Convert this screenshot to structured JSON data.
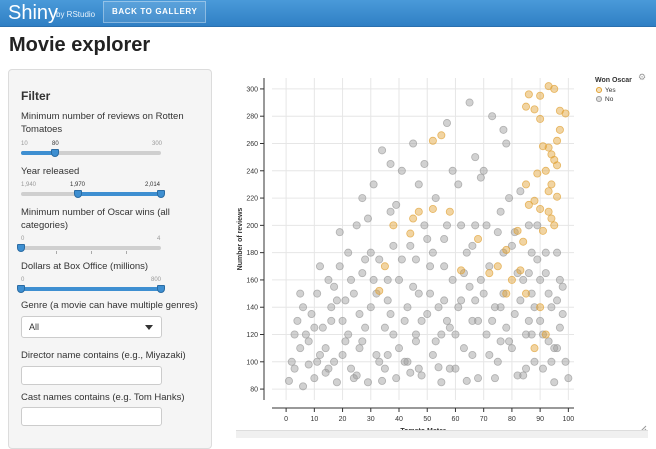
{
  "topbar": {
    "brand": "Shiny",
    "brand_sub": "by RStudio",
    "back_label": "BACK TO GALLERY"
  },
  "page_title": "Movie explorer",
  "filters": {
    "heading": "Filter",
    "reviews": {
      "label": "Minimum number of reviews on Rotten Tomatoes",
      "min": "10",
      "value": "80",
      "max": "300"
    },
    "year": {
      "label": "Year released",
      "min": "1,940",
      "low": "1,970",
      "high": "2,014"
    },
    "oscars": {
      "label": "Minimum number of Oscar wins (all categories)",
      "min": "0",
      "max": "4"
    },
    "boxoffice": {
      "label": "Dollars at Box Office (millions)",
      "min": "0",
      "max": "800"
    },
    "genre": {
      "label": "Genre (a movie can have multiple genres)",
      "value": "All"
    },
    "director": {
      "label": "Director name contains (e.g., Miyazaki)",
      "value": ""
    },
    "cast": {
      "label": "Cast names contains (e.g. Tom Hanks)",
      "value": ""
    }
  },
  "chart_data": {
    "type": "scatter",
    "xlabel": "Tomato Meter",
    "ylabel": "Number of reviews",
    "xlim": [
      -5,
      102
    ],
    "ylim": [
      72,
      308
    ],
    "x_ticks": [
      0,
      10,
      20,
      30,
      40,
      50,
      60,
      70,
      80,
      90,
      100
    ],
    "y_ticks": [
      80,
      100,
      120,
      140,
      160,
      180,
      200,
      220,
      240,
      260,
      280,
      300
    ],
    "grid": true,
    "legend": {
      "title": "Won Oscar",
      "placement": "top-right",
      "entries": [
        "Yes",
        "No"
      ]
    },
    "colors": {
      "Yes": "#e0a030",
      "No": "#999999"
    },
    "series": [
      {
        "name": "Yes",
        "points": [
          [
            52,
            262
          ],
          [
            55,
            266
          ],
          [
            85,
            287
          ],
          [
            88,
            285
          ],
          [
            90,
            278
          ],
          [
            91,
            258
          ],
          [
            93,
            257
          ],
          [
            94,
            252
          ],
          [
            95,
            248
          ],
          [
            96,
            244
          ],
          [
            92,
            240
          ],
          [
            89,
            238
          ],
          [
            85,
            230
          ],
          [
            86,
            215
          ],
          [
            88,
            218
          ],
          [
            90,
            212
          ],
          [
            93,
            210
          ],
          [
            94,
            205
          ],
          [
            95,
            200
          ],
          [
            91,
            196
          ],
          [
            82,
            196
          ],
          [
            84,
            188
          ],
          [
            78,
            182
          ],
          [
            75,
            170
          ],
          [
            72,
            165
          ],
          [
            68,
            190
          ],
          [
            58,
            210
          ],
          [
            52,
            212
          ],
          [
            47,
            210
          ],
          [
            45,
            205
          ],
          [
            44,
            194
          ],
          [
            38,
            200
          ],
          [
            35,
            170
          ],
          [
            33,
            152
          ],
          [
            62,
            167
          ],
          [
            80,
            160
          ],
          [
            85,
            150
          ],
          [
            90,
            140
          ],
          [
            92,
            120
          ],
          [
            88,
            110
          ],
          [
            97,
            284
          ],
          [
            99,
            282
          ],
          [
            97,
            270
          ],
          [
            96,
            262
          ],
          [
            94,
            230
          ],
          [
            93,
            225
          ],
          [
            96,
            221
          ],
          [
            83,
            167
          ],
          [
            78,
            150
          ],
          [
            90,
            295
          ],
          [
            93,
            302
          ],
          [
            95,
            300
          ],
          [
            86,
            296
          ]
        ]
      },
      {
        "name": "No",
        "points": [
          [
            1,
            86
          ],
          [
            3,
            95
          ],
          [
            5,
            110
          ],
          [
            6,
            82
          ],
          [
            7,
            120
          ],
          [
            8,
            98
          ],
          [
            9,
            135
          ],
          [
            10,
            88
          ],
          [
            11,
            150
          ],
          [
            12,
            105
          ],
          [
            13,
            125
          ],
          [
            14,
            92
          ],
          [
            15,
            160
          ],
          [
            16,
            140
          ],
          [
            17,
            100
          ],
          [
            18,
            85
          ],
          [
            19,
            170
          ],
          [
            20,
            130
          ],
          [
            21,
            115
          ],
          [
            22,
            180
          ],
          [
            23,
            95
          ],
          [
            24,
            150
          ],
          [
            25,
            200
          ],
          [
            26,
            110
          ],
          [
            27,
            165
          ],
          [
            28,
            125
          ],
          [
            29,
            85
          ],
          [
            30,
            140
          ],
          [
            31,
            230
          ],
          [
            32,
            105
          ],
          [
            33,
            175
          ],
          [
            34,
            255
          ],
          [
            35,
            95
          ],
          [
            36,
            145
          ],
          [
            37,
            210
          ],
          [
            38,
            120
          ],
          [
            39,
            88
          ],
          [
            40,
            160
          ],
          [
            41,
            240
          ],
          [
            42,
            130
          ],
          [
            43,
            100
          ],
          [
            44,
            185
          ],
          [
            45,
            260
          ],
          [
            46,
            115
          ],
          [
            47,
            150
          ],
          [
            48,
            90
          ],
          [
            49,
            200
          ],
          [
            50,
            135
          ],
          [
            51,
            170
          ],
          [
            52,
            105
          ],
          [
            53,
            220
          ],
          [
            54,
            140
          ],
          [
            55,
            85
          ],
          [
            56,
            190
          ],
          [
            57,
            275
          ],
          [
            58,
            125
          ],
          [
            59,
            160
          ],
          [
            60,
            95
          ],
          [
            61,
            230
          ],
          [
            62,
            145
          ],
          [
            63,
            110
          ],
          [
            64,
            180
          ],
          [
            65,
            290
          ],
          [
            66,
            130
          ],
          [
            67,
            200
          ],
          [
            68,
            88
          ],
          [
            69,
            160
          ],
          [
            70,
            240
          ],
          [
            71,
            120
          ],
          [
            72,
            170
          ],
          [
            73,
            280
          ],
          [
            74,
            140
          ],
          [
            75,
            100
          ],
          [
            76,
            210
          ],
          [
            77,
            150
          ],
          [
            78,
            260
          ],
          [
            79,
            115
          ],
          [
            80,
            185
          ],
          [
            81,
            135
          ],
          [
            82,
            90
          ],
          [
            83,
            225
          ],
          [
            84,
            160
          ],
          [
            85,
            120
          ],
          [
            86,
            200
          ],
          [
            87,
            150
          ],
          [
            88,
            100
          ],
          [
            89,
            175
          ],
          [
            90,
            130
          ],
          [
            91,
            95
          ],
          [
            92,
            165
          ],
          [
            93,
            115
          ],
          [
            94,
            140
          ],
          [
            95,
            85
          ],
          [
            96,
            180
          ],
          [
            97,
            125
          ],
          [
            98,
            155
          ],
          [
            99,
            100
          ],
          [
            100,
            88
          ],
          [
            5,
            150
          ],
          [
            8,
            115
          ],
          [
            12,
            170
          ],
          [
            15,
            95
          ],
          [
            18,
            145
          ],
          [
            22,
            120
          ],
          [
            25,
            90
          ],
          [
            28,
            175
          ],
          [
            32,
            150
          ],
          [
            35,
            125
          ],
          [
            38,
            185
          ],
          [
            42,
            100
          ],
          [
            45,
            155
          ],
          [
            48,
            130
          ],
          [
            52,
            180
          ],
          [
            55,
            120
          ],
          [
            58,
            95
          ],
          [
            62,
            200
          ],
          [
            65,
            155
          ],
          [
            68,
            130
          ],
          [
            72,
            105
          ],
          [
            75,
            195
          ],
          [
            78,
            125
          ],
          [
            82,
            165
          ],
          [
            85,
            95
          ],
          [
            88,
            140
          ],
          [
            92,
            180
          ],
          [
            95,
            110
          ],
          [
            98,
            135
          ],
          [
            20,
            105
          ],
          [
            40,
            110
          ],
          [
            60,
            120
          ],
          [
            80,
            110
          ],
          [
            30,
            180
          ],
          [
            50,
            190
          ],
          [
            70,
            150
          ],
          [
            90,
            160
          ],
          [
            10,
            125
          ],
          [
            27,
            220
          ],
          [
            47,
            230
          ],
          [
            67,
            250
          ],
          [
            87,
            180
          ],
          [
            37,
            245
          ],
          [
            57,
            200
          ],
          [
            77,
            270
          ],
          [
            33,
            100
          ],
          [
            53,
            115
          ],
          [
            73,
            130
          ],
          [
            93,
            150
          ],
          [
            43,
            140
          ],
          [
            63,
            165
          ],
          [
            83,
            145
          ],
          [
            23,
            160
          ],
          [
            3,
            120
          ],
          [
            6,
            140
          ],
          [
            14,
            110
          ],
          [
            26,
            135
          ],
          [
            36,
            105
          ],
          [
            46,
            175
          ],
          [
            56,
            145
          ],
          [
            66,
            185
          ],
          [
            76,
            115
          ],
          [
            86,
            165
          ],
          [
            96,
            145
          ],
          [
            24,
            88
          ],
          [
            44,
            92
          ],
          [
            64,
            86
          ],
          [
            84,
            90
          ],
          [
            34,
            86
          ],
          [
            54,
            96
          ],
          [
            74,
            88
          ],
          [
            94,
            100
          ],
          [
            19,
            195
          ],
          [
            39,
            215
          ],
          [
            59,
            240
          ],
          [
            79,
            220
          ],
          [
            29,
            205
          ],
          [
            49,
            245
          ],
          [
            69,
            235
          ],
          [
            89,
            200
          ],
          [
            41,
            175
          ],
          [
            61,
            140
          ],
          [
            81,
            195
          ],
          [
            21,
            145
          ],
          [
            31,
            160
          ],
          [
            51,
            150
          ],
          [
            71,
            200
          ],
          [
            91,
            120
          ],
          [
            11,
            100
          ],
          [
            16,
            130
          ],
          [
            36,
            160
          ],
          [
            46,
            120
          ],
          [
            56,
            170
          ],
          [
            66,
            105
          ],
          [
            76,
            140
          ],
          [
            86,
            130
          ],
          [
            96,
            110
          ],
          [
            2,
            100
          ],
          [
            4,
            130
          ],
          [
            17,
            155
          ],
          [
            27,
            115
          ],
          [
            37,
            135
          ],
          [
            47,
            95
          ],
          [
            57,
            130
          ],
          [
            67,
            145
          ],
          [
            77,
            180
          ],
          [
            87,
            120
          ],
          [
            97,
            160
          ]
        ]
      }
    ]
  }
}
